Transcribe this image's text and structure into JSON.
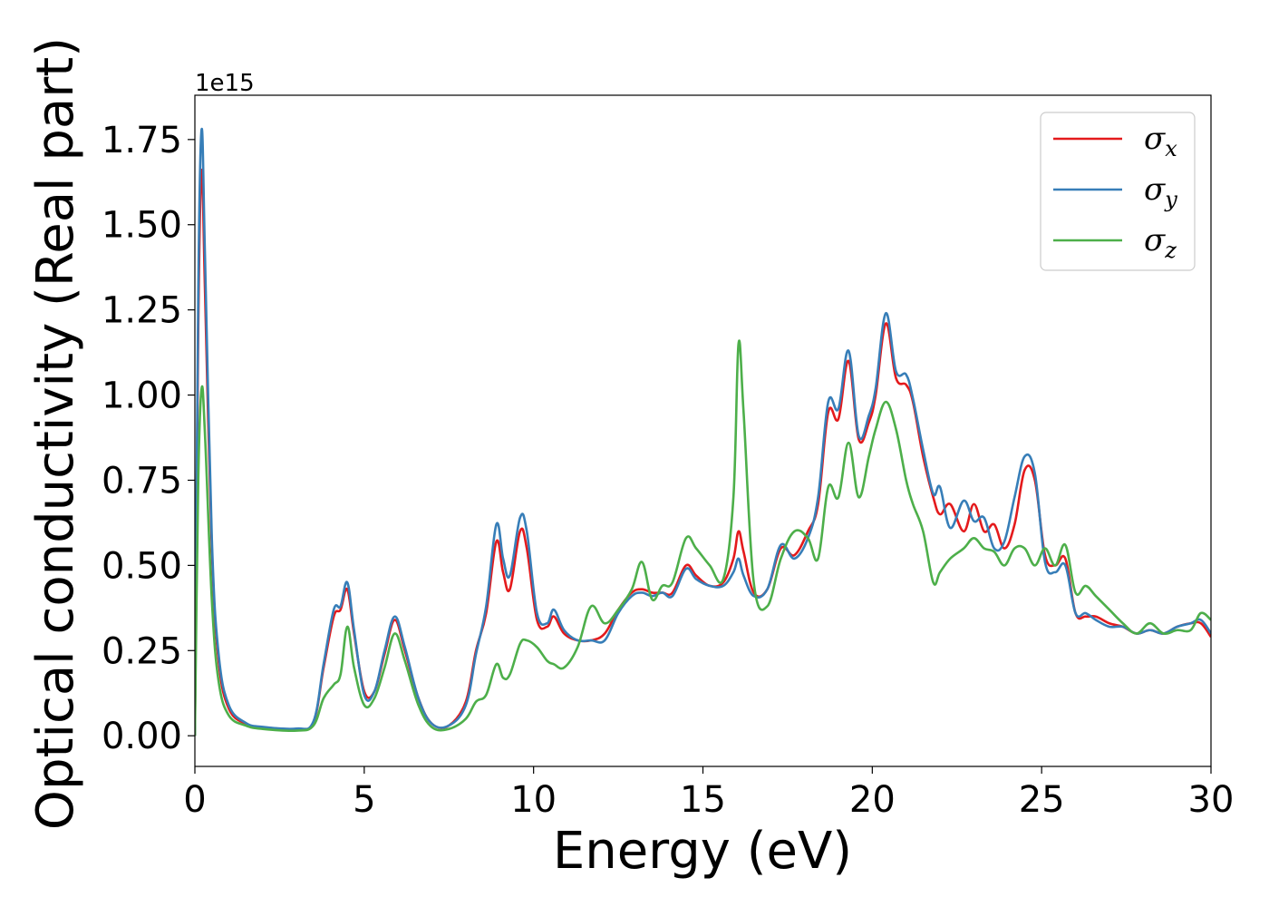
{
  "chart_data": {
    "type": "line",
    "title": "",
    "xlabel": "Energy (eV)",
    "ylabel": "Optical conductivity (Real part)",
    "y_offset_label": "1e15",
    "xlim": [
      0,
      30
    ],
    "ylim": [
      -0.09,
      1.88
    ],
    "x_ticks": [
      0,
      5,
      10,
      15,
      20,
      25,
      30
    ],
    "x_tick_labels": [
      "0",
      "5",
      "10",
      "15",
      "20",
      "25",
      "30"
    ],
    "y_ticks": [
      0.0,
      0.25,
      0.5,
      0.75,
      1.0,
      1.25,
      1.5,
      1.75
    ],
    "y_tick_labels": [
      "0.00",
      "0.25",
      "0.50",
      "0.75",
      "1.00",
      "1.25",
      "1.50",
      "1.75"
    ],
    "grid": false,
    "legend_position": "top-right",
    "x": [
      0,
      0.1,
      0.2,
      0.3,
      0.5,
      0.7,
      1.0,
      1.5,
      2.0,
      3.0,
      3.5,
      3.8,
      4.1,
      4.3,
      4.5,
      4.7,
      5.0,
      5.3,
      5.6,
      5.9,
      6.2,
      6.6,
      7.0,
      7.5,
      8.0,
      8.3,
      8.6,
      8.9,
      9.1,
      9.3,
      9.6,
      9.8,
      10.1,
      10.4,
      10.6,
      10.9,
      11.3,
      11.7,
      12.1,
      12.5,
      12.9,
      13.2,
      13.5,
      13.8,
      14.1,
      14.5,
      14.8,
      15.2,
      15.6,
      15.9,
      16.05,
      16.2,
      16.5,
      16.9,
      17.3,
      17.7,
      18.1,
      18.4,
      18.7,
      19.0,
      19.3,
      19.6,
      19.9,
      20.1,
      20.4,
      20.7,
      21.0,
      21.2,
      21.5,
      21.8,
      22.0,
      22.3,
      22.7,
      23.0,
      23.3,
      23.6,
      23.9,
      24.2,
      24.5,
      24.8,
      25.1,
      25.4,
      25.7,
      26.0,
      26.3,
      26.6,
      27.0,
      27.4,
      27.8,
      28.2,
      28.6,
      29.0,
      29.4,
      29.7,
      30.0
    ],
    "series": [
      {
        "name": "σx",
        "label_base": "σ",
        "label_sub": "x",
        "color": "#e41a1c",
        "values": [
          0.0,
          1.2,
          1.66,
          1.3,
          0.55,
          0.22,
          0.08,
          0.035,
          0.025,
          0.02,
          0.04,
          0.2,
          0.35,
          0.37,
          0.43,
          0.3,
          0.13,
          0.13,
          0.24,
          0.34,
          0.25,
          0.11,
          0.035,
          0.03,
          0.1,
          0.25,
          0.36,
          0.57,
          0.48,
          0.43,
          0.6,
          0.55,
          0.34,
          0.32,
          0.35,
          0.3,
          0.28,
          0.28,
          0.3,
          0.37,
          0.42,
          0.43,
          0.42,
          0.42,
          0.42,
          0.5,
          0.47,
          0.44,
          0.45,
          0.52,
          0.6,
          0.54,
          0.42,
          0.43,
          0.55,
          0.53,
          0.6,
          0.68,
          0.95,
          0.93,
          1.1,
          0.87,
          0.92,
          1.0,
          1.21,
          1.05,
          1.03,
          0.98,
          0.82,
          0.7,
          0.65,
          0.68,
          0.6,
          0.68,
          0.6,
          0.62,
          0.55,
          0.62,
          0.78,
          0.75,
          0.53,
          0.5,
          0.52,
          0.36,
          0.35,
          0.35,
          0.33,
          0.32,
          0.3,
          0.31,
          0.3,
          0.32,
          0.33,
          0.33,
          0.29
        ]
      },
      {
        "name": "σy",
        "label_base": "σ",
        "label_sub": "y",
        "color": "#377eb8",
        "values": [
          0.0,
          1.3,
          1.78,
          1.4,
          0.58,
          0.24,
          0.09,
          0.038,
          0.026,
          0.021,
          0.042,
          0.21,
          0.37,
          0.38,
          0.45,
          0.31,
          0.12,
          0.13,
          0.25,
          0.35,
          0.26,
          0.11,
          0.035,
          0.03,
          0.09,
          0.24,
          0.38,
          0.62,
          0.52,
          0.47,
          0.64,
          0.6,
          0.36,
          0.33,
          0.37,
          0.31,
          0.28,
          0.28,
          0.28,
          0.36,
          0.41,
          0.42,
          0.41,
          0.42,
          0.41,
          0.49,
          0.46,
          0.44,
          0.44,
          0.48,
          0.52,
          0.47,
          0.41,
          0.43,
          0.56,
          0.52,
          0.58,
          0.7,
          0.98,
          0.96,
          1.13,
          0.88,
          0.94,
          1.02,
          1.24,
          1.07,
          1.06,
          0.99,
          0.84,
          0.71,
          0.73,
          0.61,
          0.69,
          0.63,
          0.64,
          0.55,
          0.57,
          0.7,
          0.82,
          0.77,
          0.51,
          0.48,
          0.5,
          0.36,
          0.36,
          0.34,
          0.32,
          0.32,
          0.3,
          0.31,
          0.3,
          0.32,
          0.33,
          0.34,
          0.3
        ]
      },
      {
        "name": "σz",
        "label_base": "σ",
        "label_sub": "z",
        "color": "#4daf4a",
        "values": [
          0.0,
          0.75,
          1.02,
          0.88,
          0.4,
          0.16,
          0.06,
          0.03,
          0.02,
          0.015,
          0.03,
          0.11,
          0.15,
          0.18,
          0.32,
          0.2,
          0.09,
          0.11,
          0.2,
          0.3,
          0.22,
          0.09,
          0.025,
          0.02,
          0.05,
          0.1,
          0.12,
          0.21,
          0.17,
          0.18,
          0.27,
          0.28,
          0.26,
          0.22,
          0.21,
          0.2,
          0.26,
          0.38,
          0.33,
          0.37,
          0.43,
          0.51,
          0.4,
          0.44,
          0.45,
          0.58,
          0.55,
          0.5,
          0.46,
          0.7,
          1.15,
          0.95,
          0.45,
          0.38,
          0.52,
          0.6,
          0.58,
          0.52,
          0.73,
          0.7,
          0.86,
          0.7,
          0.82,
          0.9,
          0.98,
          0.9,
          0.75,
          0.68,
          0.6,
          0.45,
          0.48,
          0.52,
          0.55,
          0.58,
          0.55,
          0.54,
          0.5,
          0.55,
          0.55,
          0.5,
          0.55,
          0.5,
          0.56,
          0.42,
          0.44,
          0.41,
          0.37,
          0.33,
          0.3,
          0.33,
          0.3,
          0.31,
          0.31,
          0.36,
          0.34
        ]
      }
    ]
  }
}
